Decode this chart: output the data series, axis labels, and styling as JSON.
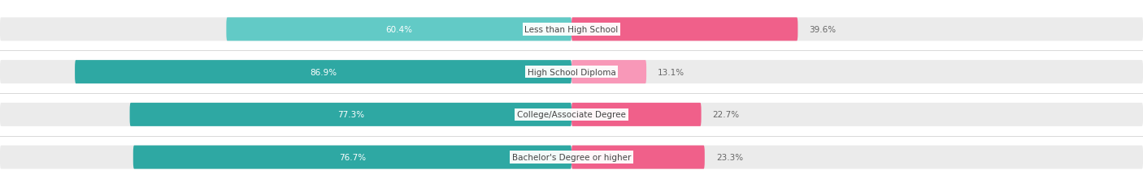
{
  "categories": [
    "Less than High School",
    "High School Diploma",
    "College/Associate Degree",
    "Bachelor's Degree or higher"
  ],
  "owner_values": [
    60.4,
    86.9,
    77.3,
    76.7
  ],
  "renter_values": [
    39.6,
    13.1,
    22.7,
    23.3
  ],
  "owner_colors": [
    "#62cac6",
    "#2ea8a3",
    "#2ea8a3",
    "#2ea8a3"
  ],
  "renter_colors": [
    "#f0608a",
    "#f898b8",
    "#f0608a",
    "#f0608a"
  ],
  "bar_bg_color": "#ebebeb",
  "title_fontsize": 9.5,
  "source_fontsize": 7.5,
  "bar_label_fontsize": 7.5,
  "cat_label_fontsize": 7.5,
  "legend_fontsize": 8,
  "bar_height": 0.55,
  "bar_gap": 0.18,
  "title_color": "#333333",
  "source_color": "#777777",
  "category_color": "#444444",
  "value_color_outside": "#666666",
  "axis_tick_color": "#888888",
  "separator_color": "#d8d8d8",
  "bg_color": "#ffffff"
}
